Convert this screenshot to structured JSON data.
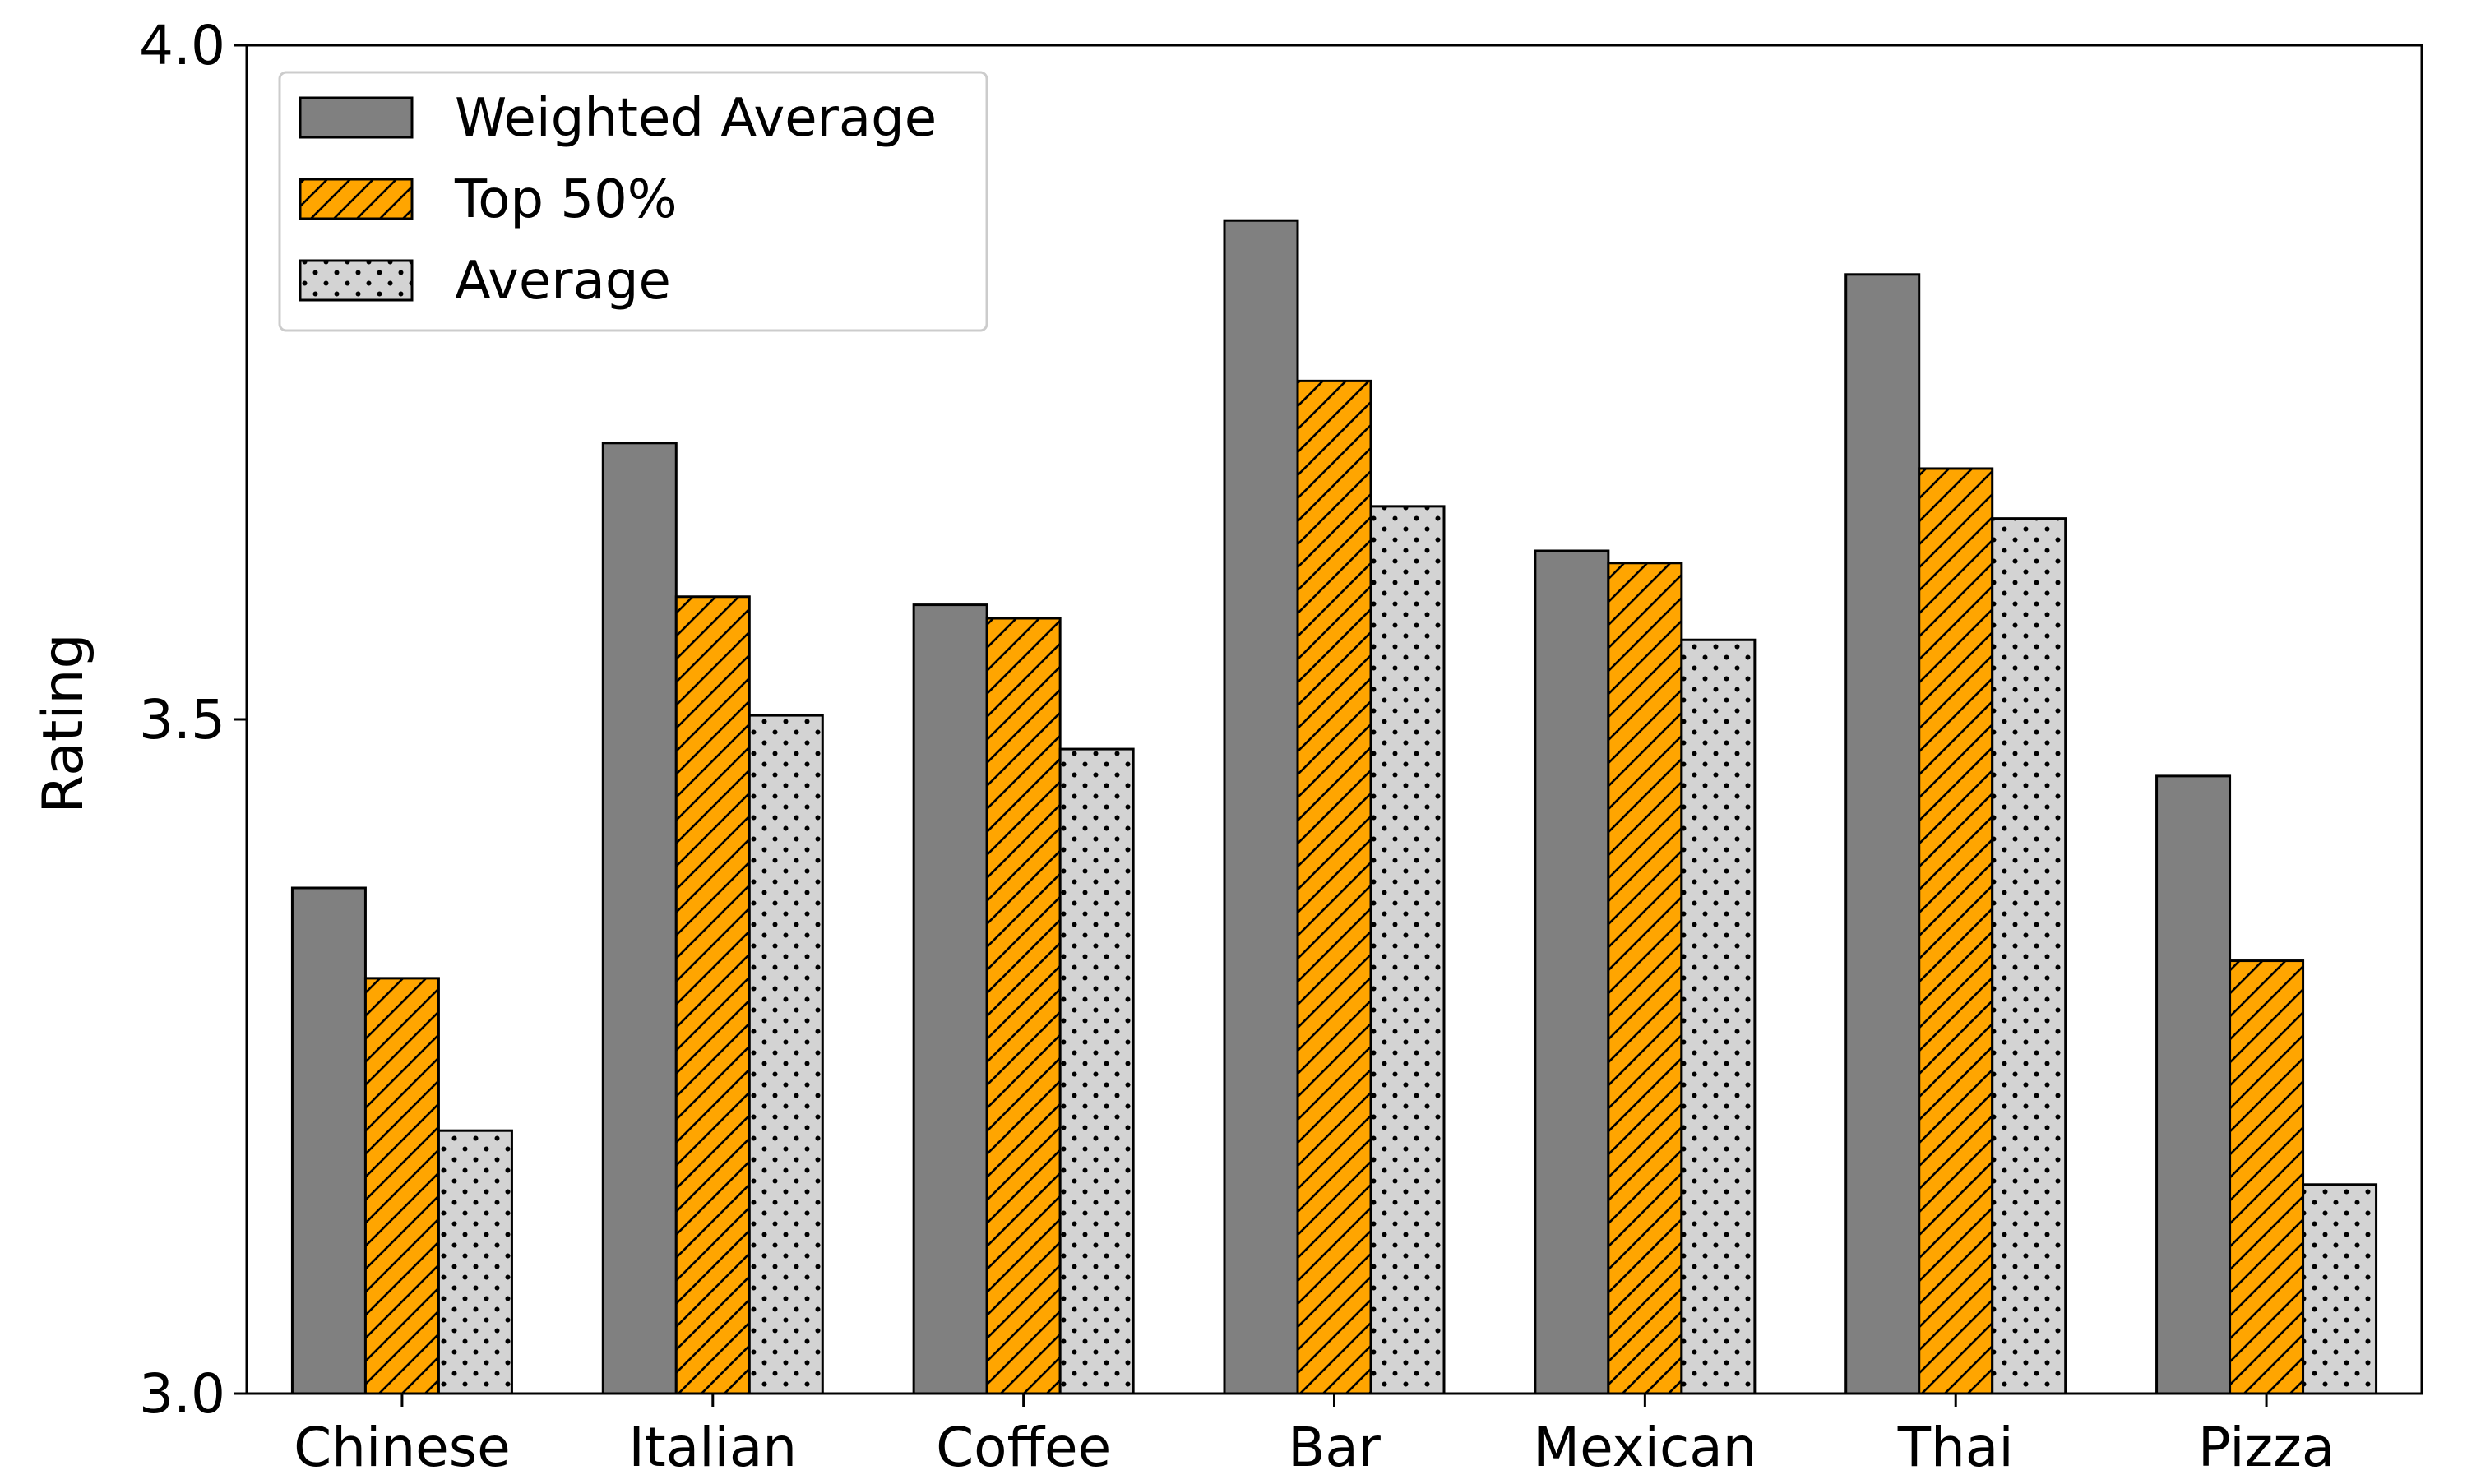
{
  "chart_data": {
    "type": "bar",
    "title": "",
    "xlabel": "",
    "ylabel": "Rating",
    "ylim": [
      3.0,
      4.0
    ],
    "yticks": [
      "3.0",
      "3.5",
      "4.0"
    ],
    "grid": false,
    "legend_position": "top-left",
    "categories": [
      "Chinese",
      "Italian",
      "Coffee",
      "Bar",
      "Mexican",
      "Thai",
      "Pizza"
    ],
    "series": [
      {
        "name": "Weighted Average",
        "values": [
          3.375,
          3.705,
          3.585,
          3.87,
          3.625,
          3.83,
          3.458
        ],
        "color": "#808080",
        "pattern": "solid"
      },
      {
        "name": "Top 50%",
        "values": [
          3.308,
          3.591,
          3.575,
          3.751,
          3.616,
          3.686,
          3.321
        ],
        "color": "#FFA500",
        "pattern": "diagonal-hatch"
      },
      {
        "name": "Average",
        "values": [
          3.195,
          3.503,
          3.478,
          3.658,
          3.559,
          3.649,
          3.155
        ],
        "color": "#D3D3D3",
        "pattern": "dots"
      }
    ]
  }
}
